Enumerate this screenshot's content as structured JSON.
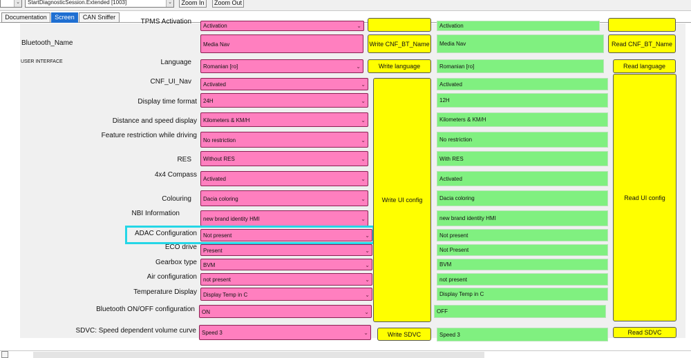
{
  "toolbar": {
    "session_combo": "StartDiagnosticSession.Extended [1003]",
    "zoom_in": "Zoom In",
    "zoom_out": "Zoom Out"
  },
  "tabs": [
    "Documentation",
    "Screen",
    "CAN Sniffer"
  ],
  "active_tab": "Screen",
  "section_title": "USER INTERFACE",
  "buttons": {
    "write_bt_name": "Write CNF_BT_Name",
    "read_bt_name": "Read CNF_BT_Name",
    "write_language": "Write language",
    "read_language": "Read language",
    "write_ui_config": "Write UI config",
    "read_ui_config": "Read UI config",
    "write_sdvc": "Write SDVC",
    "read_sdvc": "Read SDVC"
  },
  "rows": [
    {
      "label": "TPMS Activation",
      "value": "Activation",
      "read": "Activation"
    },
    {
      "label": "Bluetooth_Name",
      "value": "Media Nav",
      "read": "Media Nav"
    },
    {
      "label": "Language",
      "value": "Romanian [ro]",
      "read": "Romanian [ro]"
    },
    {
      "label": "CNF_UI_Nav",
      "value": "Activated",
      "read": "Activated"
    },
    {
      "label": "Display time format",
      "value": "24H",
      "read": "12H"
    },
    {
      "label": "Distance and speed display",
      "value": "Kilometers & KM/H",
      "read": "Kilometers & KM/H"
    },
    {
      "label": "Feature restriction while driving",
      "value": "No restriction",
      "read": "No restriction"
    },
    {
      "label": "RES",
      "value": "Without RES",
      "read": "With RES"
    },
    {
      "label": "4x4 Compass",
      "value": "Activated",
      "read": "Activated"
    },
    {
      "label": "Colouring",
      "value": "Dacia coloring",
      "read": "Dacia coloring"
    },
    {
      "label": "NBI Information",
      "value": "new brand identity HMI",
      "read": "new brand identity HMI"
    },
    {
      "label": "ADAC Configuration",
      "value": "Not present",
      "read": "Not present"
    },
    {
      "label": "ECO drive",
      "value": "Present",
      "read": "Not Present"
    },
    {
      "label": "Gearbox type",
      "value": "BVM",
      "read": "BVM"
    },
    {
      "label": "Air configuration",
      "value": "not present",
      "read": "not present"
    },
    {
      "label": "Temperature Display",
      "value": "Display Temp in C",
      "read": "Display Temp in C"
    },
    {
      "label": "Bluetooth ON/OFF configuration",
      "value": "ON",
      "read": "OFF"
    },
    {
      "label": "SDVC: Speed dependent volume curve",
      "value": "Speed 3",
      "read": "Speed 3"
    }
  ],
  "colors": {
    "pink": "#ff7fbf",
    "green": "#80f080",
    "yellow": "#ffff00",
    "highlight": "#24d6e6",
    "active_tab": "#1f6fd1"
  }
}
